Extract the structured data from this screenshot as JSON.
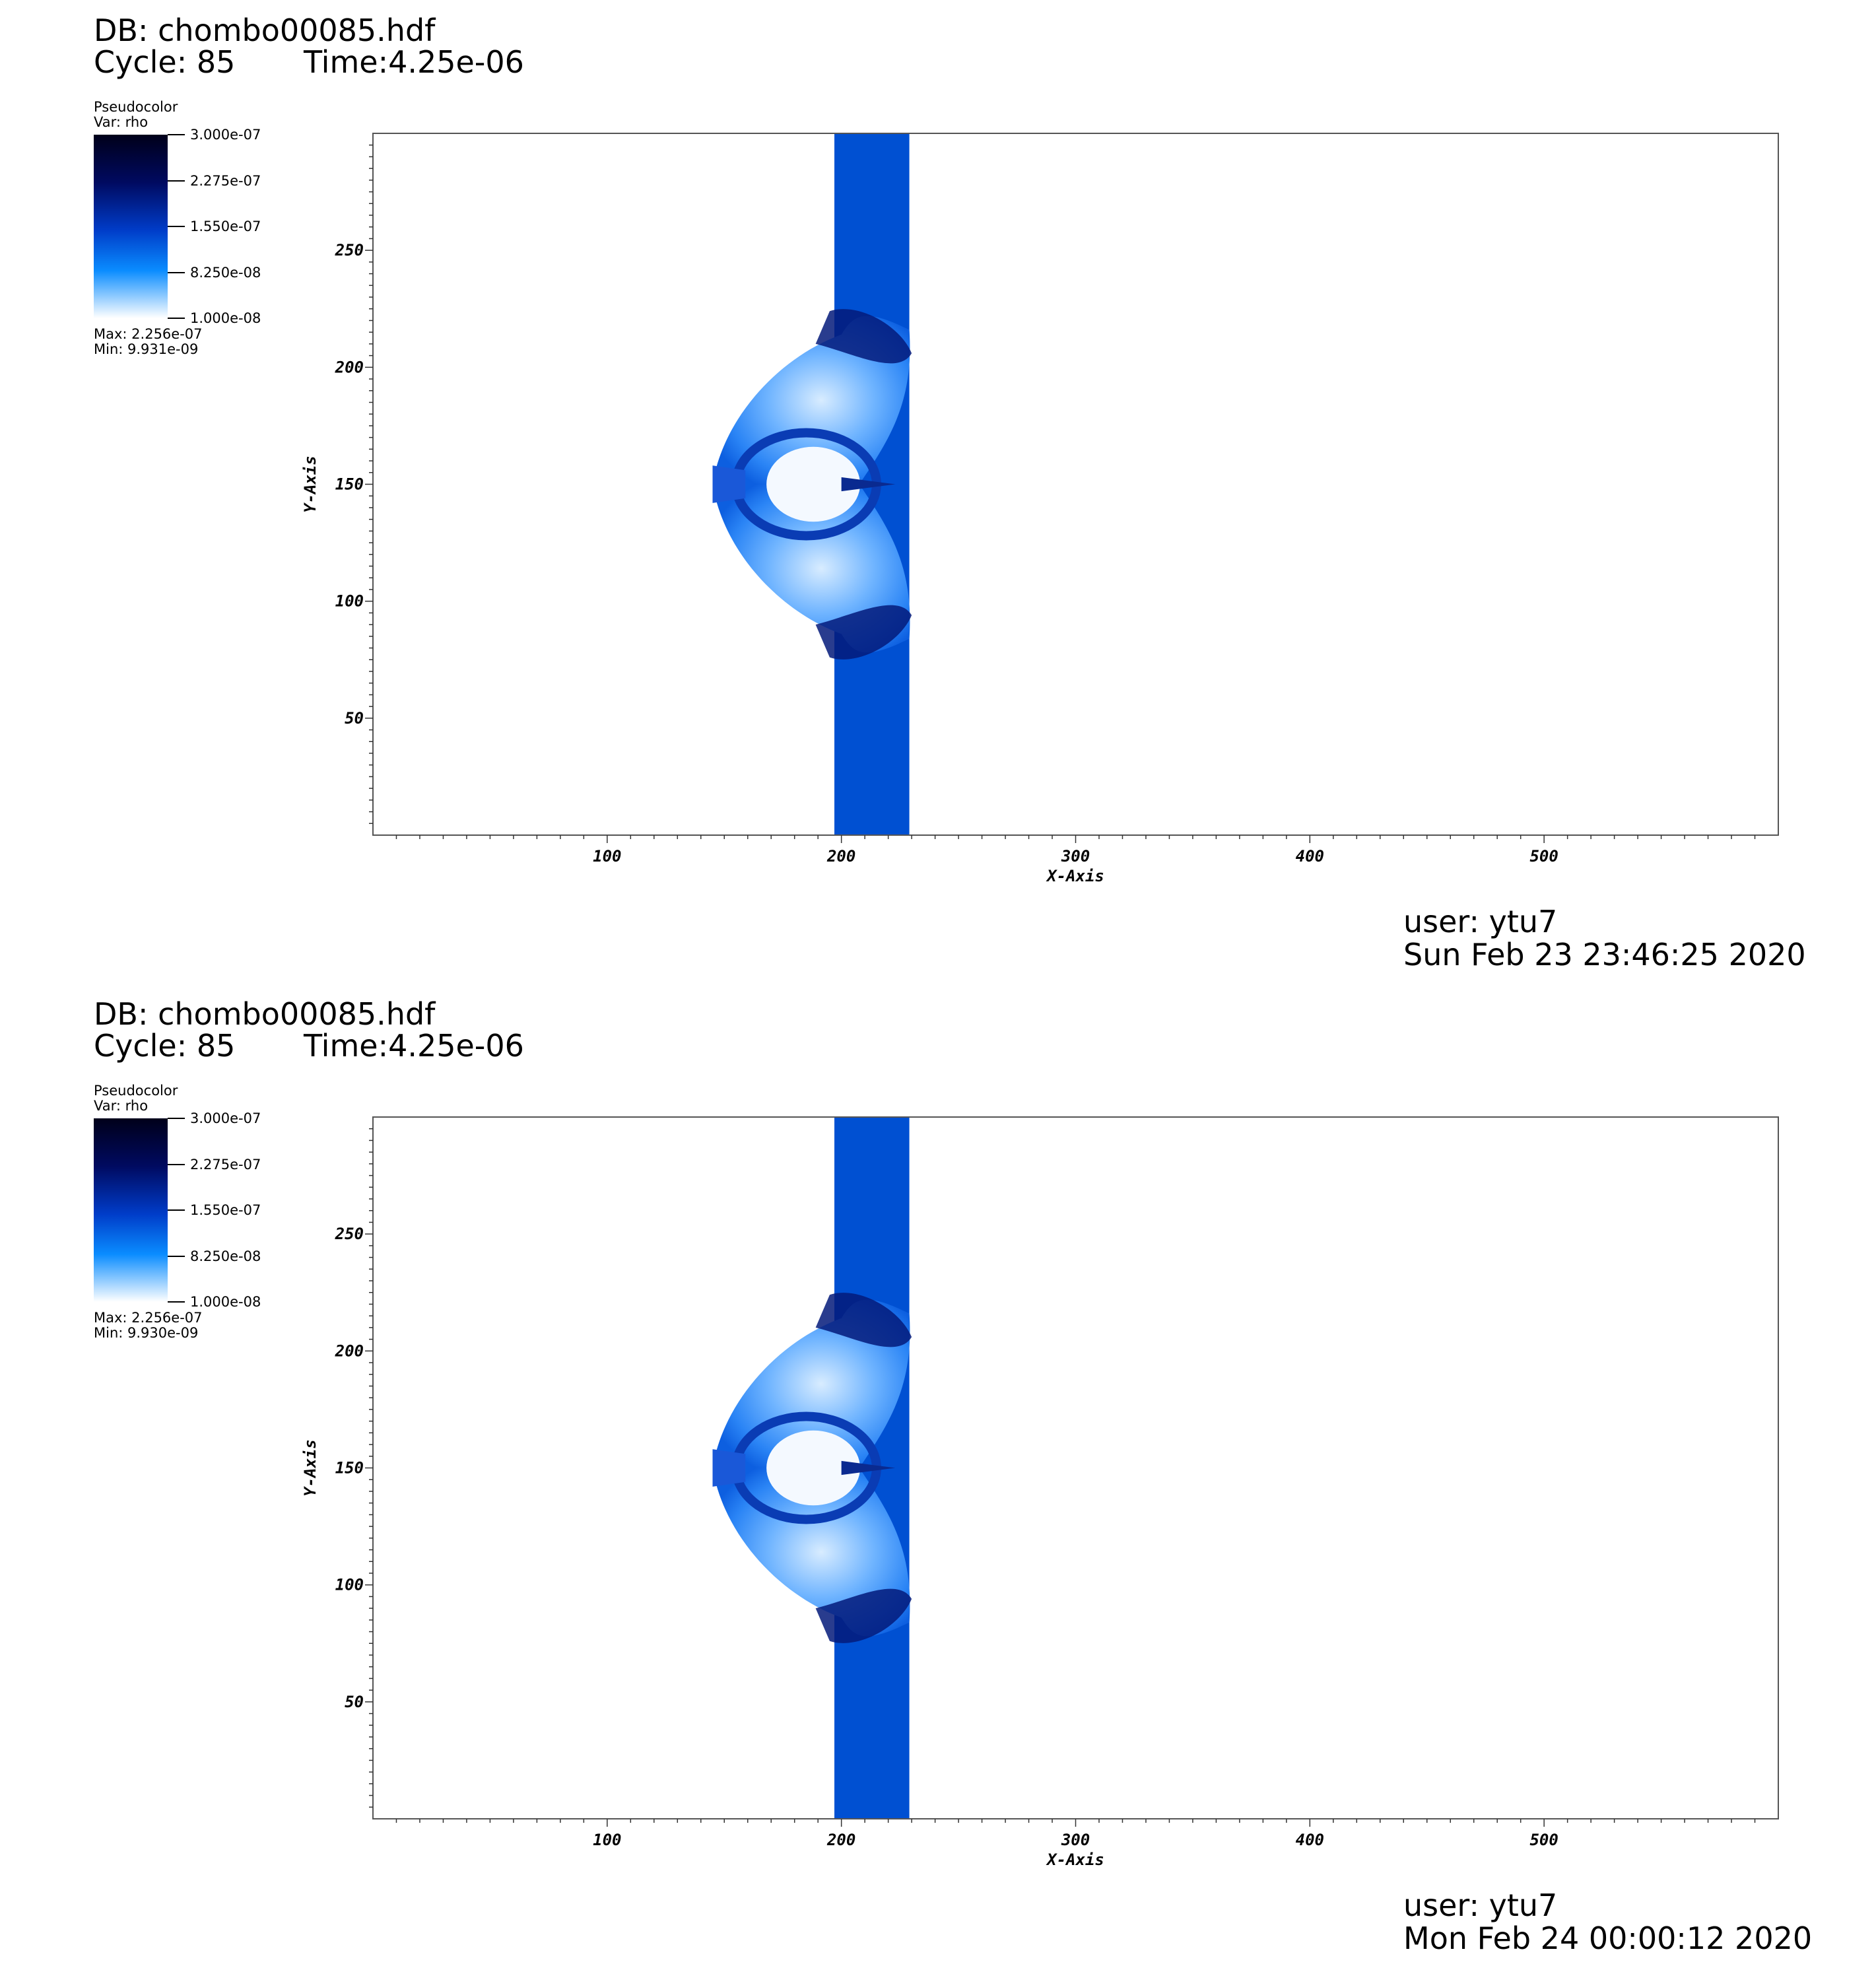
{
  "panels": [
    {
      "db_title": "DB: chombo00085.hdf",
      "cycle": "Cycle: 85",
      "time": "Time:4.25e-06",
      "legend": {
        "title": "Pseudocolor",
        "var": "Var: rho",
        "labels": [
          "3.000e-07",
          "2.275e-07",
          "1.550e-07",
          "8.250e-08",
          "1.000e-08"
        ],
        "max": "Max:  2.256e-07",
        "min": "Min:  9.931e-09"
      },
      "user": "user: ytu7",
      "date": "Sun Feb 23 23:46:25 2020"
    },
    {
      "db_title": "DB: chombo00085.hdf",
      "cycle": "Cycle: 85",
      "time": "Time:4.25e-06",
      "legend": {
        "title": "Pseudocolor",
        "var": "Var: rho",
        "labels": [
          "3.000e-07",
          "2.275e-07",
          "1.550e-07",
          "8.250e-08",
          "1.000e-08"
        ],
        "max": "Max:  2.256e-07",
        "min": "Min:  9.930e-09"
      },
      "user": "user: ytu7",
      "date": "Mon Feb 24 00:00:12 2020"
    }
  ],
  "chart_data": [
    {
      "type": "heatmap",
      "variable": "rho",
      "xlabel": "X-Axis",
      "ylabel": "Y-Axis",
      "xlim": [
        0,
        600
      ],
      "ylim": [
        0,
        300
      ],
      "x_ticks": [
        100,
        200,
        300,
        400,
        500
      ],
      "y_ticks": [
        50,
        100,
        150,
        200,
        250
      ],
      "colorbar": {
        "min": 1e-08,
        "max": 3e-07,
        "colors": [
          "#ffffff",
          "#0a8cff",
          "#003cc8",
          "#000a60",
          "#00001a"
        ]
      },
      "data_min": 9.931e-09,
      "data_max": 2.256e-07,
      "features": {
        "dense_column_x": [
          197,
          229
        ],
        "column_color": "#0050d2",
        "background_color": "#ffffff",
        "bubble_center_y": 150,
        "bubble_y_range": [
          74,
          226
        ],
        "bubble_left_x": 145
      }
    },
    {
      "type": "heatmap",
      "variable": "rho",
      "xlabel": "X-Axis",
      "ylabel": "Y-Axis",
      "xlim": [
        0,
        600
      ],
      "ylim": [
        0,
        300
      ],
      "x_ticks": [
        100,
        200,
        300,
        400,
        500
      ],
      "y_ticks": [
        50,
        100,
        150,
        200,
        250
      ],
      "colorbar": {
        "min": 1e-08,
        "max": 3e-07,
        "colors": [
          "#ffffff",
          "#0a8cff",
          "#003cc8",
          "#000a60",
          "#00001a"
        ]
      },
      "data_min": 9.93e-09,
      "data_max": 2.256e-07,
      "features": {
        "dense_column_x": [
          197,
          229
        ],
        "column_color": "#0050d2",
        "background_color": "#ffffff",
        "bubble_center_y": 150,
        "bubble_y_range": [
          74,
          226
        ],
        "bubble_left_x": 145
      }
    }
  ]
}
